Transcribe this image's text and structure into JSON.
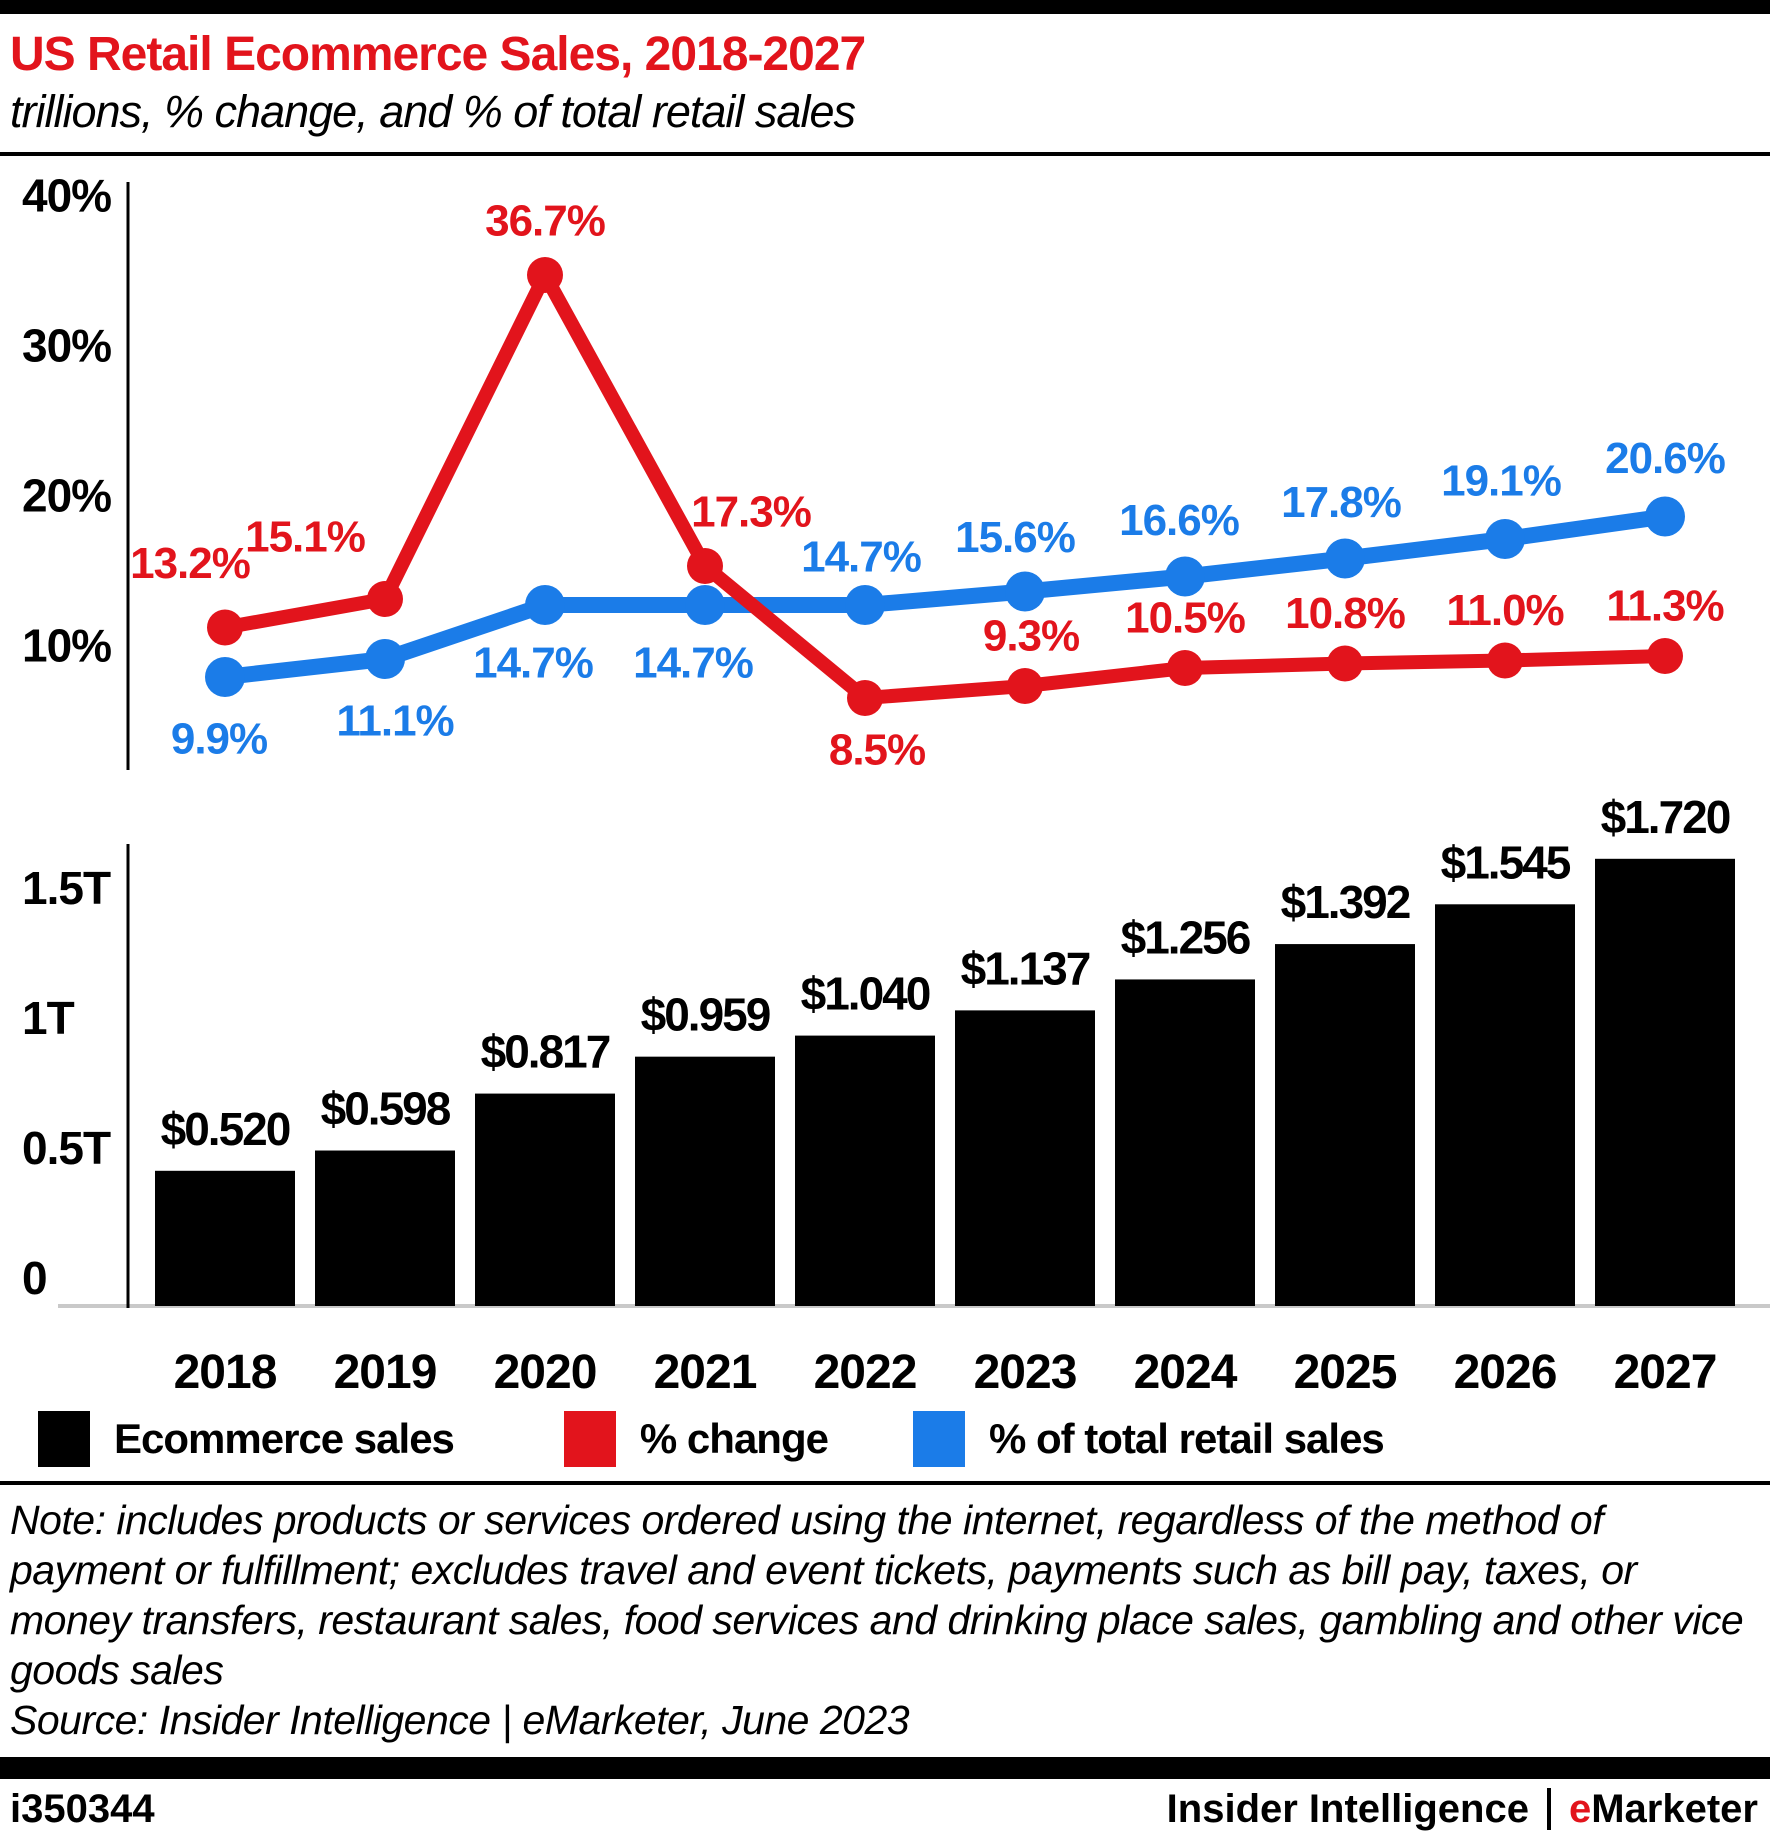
{
  "header": {
    "title": "US Retail Ecommerce Sales, 2018-2027",
    "subtitle": "trillions, % change, and % of total retail sales"
  },
  "colors": {
    "red": "#E2141C",
    "blue": "#1B7CE8",
    "black": "#000000",
    "baseline_gray": "#C9C9C9"
  },
  "chart_data": {
    "type": "bar",
    "title": "US Retail Ecommerce Sales, 2018-2027",
    "subtitle": "trillions, % change, and % of total retail sales",
    "categories": [
      "2018",
      "2019",
      "2020",
      "2021",
      "2022",
      "2023",
      "2024",
      "2025",
      "2026",
      "2027"
    ],
    "series": [
      {
        "name": "Ecommerce sales",
        "type": "bar",
        "unit": "$ trillions",
        "color": "#000000",
        "values": [
          0.52,
          0.598,
          0.817,
          0.959,
          1.04,
          1.137,
          1.256,
          1.392,
          1.545,
          1.72
        ],
        "labels": [
          "$0.520",
          "$0.598",
          "$0.817",
          "$0.959",
          "$1.040",
          "$1.137",
          "$1.256",
          "$1.392",
          "$1.545",
          "$1.720"
        ]
      },
      {
        "name": "% change",
        "type": "line",
        "unit": "%",
        "color": "#E2141C",
        "values": [
          13.2,
          15.1,
          36.7,
          17.3,
          8.5,
          9.3,
          10.5,
          10.8,
          11.0,
          11.3
        ],
        "labels": [
          "13.2%",
          "15.1%",
          "36.7%",
          "17.3%",
          "8.5%",
          "9.3%",
          "10.5%",
          "10.8%",
          "11.0%",
          "11.3%"
        ]
      },
      {
        "name": "% of total retail sales",
        "type": "line",
        "unit": "%",
        "color": "#1B7CE8",
        "values": [
          9.9,
          11.1,
          14.7,
          14.7,
          14.7,
          15.6,
          16.6,
          17.8,
          19.1,
          20.6
        ],
        "labels": [
          "9.9%",
          "11.1%",
          "14.7%",
          "14.7%",
          "14.7%",
          "15.6%",
          "16.6%",
          "17.8%",
          "19.1%",
          "20.6%"
        ]
      }
    ],
    "line_axis": {
      "ticks": [
        "40%",
        "30%",
        "20%",
        "10%"
      ],
      "tick_values": [
        40,
        30,
        20,
        10
      ],
      "range": [
        6,
        42
      ],
      "grid": false
    },
    "bar_axis": {
      "ticks": [
        "1.5T",
        "1T",
        "0.5T",
        "0"
      ],
      "tick_values": [
        1.5,
        1.0,
        0.5,
        0
      ],
      "range": [
        0,
        1.8
      ],
      "grid": false
    },
    "legend_position": "bottom",
    "layout": {
      "label_offsets": [
        null,
        [
          [
            -35,
            -64
          ],
          [
            -80,
            -62
          ],
          [
            0,
            -54
          ],
          [
            46,
            -54
          ],
          [
            12,
            52
          ],
          [
            6,
            -50
          ],
          [
            0,
            -50
          ],
          [
            0,
            -50
          ],
          [
            0,
            -50
          ],
          [
            0,
            -50
          ]
        ],
        [
          [
            -6,
            62
          ],
          [
            10,
            62
          ],
          [
            -12,
            58
          ],
          [
            -12,
            58
          ],
          [
            -4,
            -48
          ],
          [
            -10,
            -54
          ],
          [
            -6,
            -56
          ],
          [
            -4,
            -56
          ],
          [
            -4,
            -58
          ],
          [
            0,
            -58
          ]
        ]
      ]
    }
  },
  "legend": {
    "items": [
      {
        "label": "Ecommerce sales",
        "color": "#000000"
      },
      {
        "label": "% change",
        "color": "#E2141C"
      },
      {
        "label": "% of total retail sales",
        "color": "#1B7CE8"
      }
    ]
  },
  "note": {
    "text": "Note: includes products or services ordered using the internet, regardless of the method of payment or fulfillment; excludes travel and event tickets, payments such as bill pay, taxes, or money transfers, restaurant sales, food services and drinking place sales, gambling and other vice goods sales",
    "source": "Source: Insider Intelligence | eMarketer, June 2023"
  },
  "footer": {
    "chart_id": "i350344",
    "brand_insider": "Insider Intelligence",
    "brand_emarketer_prefix": "e",
    "brand_emarketer_suffix": "Marketer"
  }
}
